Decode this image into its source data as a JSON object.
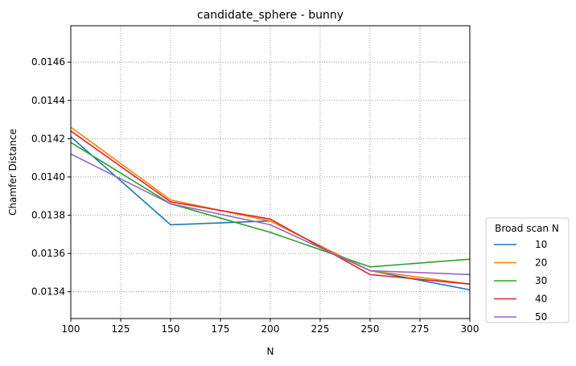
{
  "chart_data": {
    "type": "line",
    "title": "candidate_sphere - bunny",
    "xlabel": "N",
    "ylabel": "Chamfer Distance",
    "x": [
      100,
      150,
      200,
      250,
      300
    ],
    "xlim": [
      100,
      300
    ],
    "ylim": [
      0.01326,
      0.01479
    ],
    "xticks": [
      100,
      125,
      150,
      175,
      200,
      225,
      250,
      275,
      300
    ],
    "xtick_labels": [
      "100",
      "125",
      "150",
      "175",
      "200",
      "225",
      "250",
      "275",
      "300"
    ],
    "yticks": [
      0.0134,
      0.0136,
      0.0138,
      0.014,
      0.0142,
      0.0144,
      0.0146
    ],
    "ytick_labels": [
      "0.0134",
      "0.0136",
      "0.0138",
      "0.0140",
      "0.0142",
      "0.0144",
      "0.0146"
    ],
    "grid": true,
    "legend": {
      "title": "Broad scan N",
      "placement": "outside-right-bottom"
    },
    "series": [
      {
        "name": "10",
        "color": "#1f77b4",
        "values": [
          0.01421,
          0.01375,
          0.01377,
          0.01351,
          0.01341
        ]
      },
      {
        "name": "20",
        "color": "#ff7f0e",
        "values": [
          0.01426,
          0.01388,
          0.01377,
          0.01351,
          0.01344
        ]
      },
      {
        "name": "30",
        "color": "#2ca02c",
        "values": [
          0.01418,
          0.01386,
          0.01371,
          0.01353,
          0.01357
        ]
      },
      {
        "name": "40",
        "color": "#d62728",
        "values": [
          0.01424,
          0.01387,
          0.01378,
          0.01349,
          0.01344
        ]
      },
      {
        "name": "50",
        "color": "#9467bd",
        "values": [
          0.01412,
          0.01386,
          0.01375,
          0.01351,
          0.01349
        ]
      }
    ]
  }
}
